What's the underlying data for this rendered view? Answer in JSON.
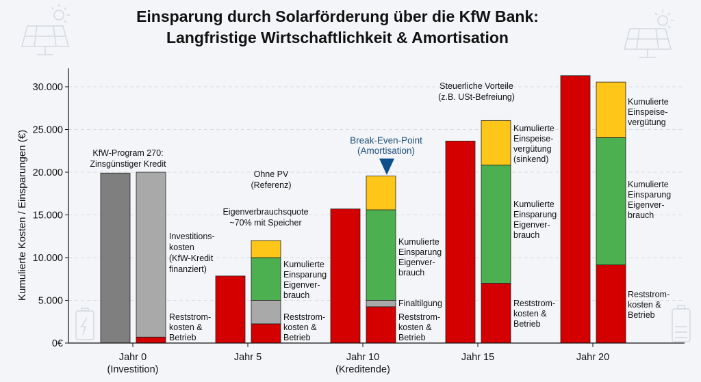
{
  "chart_data": {
    "type": "bar",
    "stacked": true,
    "title": [
      "Einsparung durch Solarförderung über die KfW Bank:",
      "Langfristige Wirtschaftlichkeit & Amortisation"
    ],
    "ylabel": "Kumulierte Kosten / Einsparungen (€)",
    "xlabel": "",
    "ylim": [
      0,
      32000
    ],
    "yticks": [
      0,
      5000,
      10000,
      15000,
      20000,
      25000,
      30000
    ],
    "ytick_labels": [
      "0€",
      "5.000",
      "10.000",
      "15.000",
      "20.000",
      "25.000",
      "30.000"
    ],
    "grid": true,
    "categories": [
      [
        "Jahr 0",
        "(Investition)"
      ],
      [
        "Jahr 5",
        ""
      ],
      [
        "Jahr 10",
        "(Kreditende)"
      ],
      [
        "Jahr 15",
        ""
      ],
      [
        "Jahr 20",
        ""
      ]
    ],
    "colors": {
      "reference_initial": "#7f7f7f",
      "investment": "#a9a9a9",
      "residual_costs": "#d40000",
      "loan_repayment": "#a9a9a9",
      "self_consumption_savings": "#4caf50",
      "feed_in": "#ffc61a",
      "break_even": "#0d4f8b"
    },
    "groups": [
      {
        "bars": [
          [
            {
              "kind": "reference_initial",
              "value": 19900
            }
          ],
          [
            {
              "kind": "residual_costs",
              "value": 700
            },
            {
              "kind": "investment",
              "value": 19300
            }
          ]
        ]
      },
      {
        "bars": [
          [
            {
              "kind": "residual_costs",
              "value": 7850
            }
          ],
          [
            {
              "kind": "residual_costs",
              "value": 2250
            },
            {
              "kind": "loan_repayment",
              "value": 2750
            },
            {
              "kind": "self_consumption_savings",
              "value": 5000
            },
            {
              "kind": "feed_in",
              "value": 2000
            }
          ]
        ]
      },
      {
        "bars": [
          [
            {
              "kind": "residual_costs",
              "value": 15700
            }
          ],
          [
            {
              "kind": "residual_costs",
              "value": 4250
            },
            {
              "kind": "loan_repayment",
              "value": 750
            },
            {
              "kind": "self_consumption_savings",
              "value": 10600
            },
            {
              "kind": "feed_in",
              "value": 3950
            }
          ]
        ]
      },
      {
        "bars": [
          [
            {
              "kind": "residual_costs",
              "value": 23650
            }
          ],
          [
            {
              "kind": "residual_costs",
              "value": 7000
            },
            {
              "kind": "self_consumption_savings",
              "value": 13850
            },
            {
              "kind": "feed_in",
              "value": 5200
            }
          ]
        ]
      },
      {
        "bars": [
          [
            {
              "kind": "residual_costs",
              "value": 31300
            }
          ],
          [
            {
              "kind": "residual_costs",
              "value": 9150
            },
            {
              "kind": "self_consumption_savings",
              "value": 14900
            },
            {
              "kind": "feed_in",
              "value": 6500
            }
          ]
        ]
      }
    ],
    "annotations": {
      "kfw": [
        "KfW-Program 270:",
        "Zinsgünstiger Kredit"
      ],
      "invest": [
        "Investitions-",
        "kosten",
        "(KfW-Kredit",
        "finanziert)"
      ],
      "rest0": [
        "Reststrom-",
        "kosten &",
        "Betrieb"
      ],
      "ohne": [
        "Ohne PV",
        "(Referenz)"
      ],
      "quote": [
        "Eigenverbrauchsquote",
        "~70% mit Speicher"
      ],
      "eig5": [
        "Kumulierte",
        "Einsparung",
        "Eigenver-",
        "brauch"
      ],
      "rest5": [
        "Reststrom-",
        "kosten &",
        "Betrieb"
      ],
      "breakeven": [
        "Break-Even-Point",
        "(Amortisation)"
      ],
      "eig10": [
        "Kumulierte",
        "Einsparung",
        "Eigenver-",
        "brauch"
      ],
      "final": [
        "Finaltilgung"
      ],
      "rest10": [
        "Reststrom-",
        "kosten &",
        "Betrieb"
      ],
      "steuer": [
        "Steuerliche Vorteile",
        "(z.B. USt-Befreiung)"
      ],
      "feed15": [
        "Kumulierte",
        "Einspeise-",
        "vergütung",
        "(sinkend)"
      ],
      "eig15": [
        "Kumulierte",
        "Einsparung",
        "Eigenver-",
        "brauch"
      ],
      "rest15": [
        "Reststrom-",
        "kosten &",
        "Betrieb"
      ],
      "feed20": [
        "Kumulierte",
        "Einspeise-",
        "vergütung"
      ],
      "eig20": [
        "Kumulierte",
        "Einsparung",
        "Eigenver-",
        "brauch"
      ],
      "rest20": [
        "Reststrom-",
        "kosten &",
        "Betrieb"
      ]
    }
  },
  "icons": [
    "solar-panel-icon",
    "sun-icon",
    "battery-icon"
  ]
}
